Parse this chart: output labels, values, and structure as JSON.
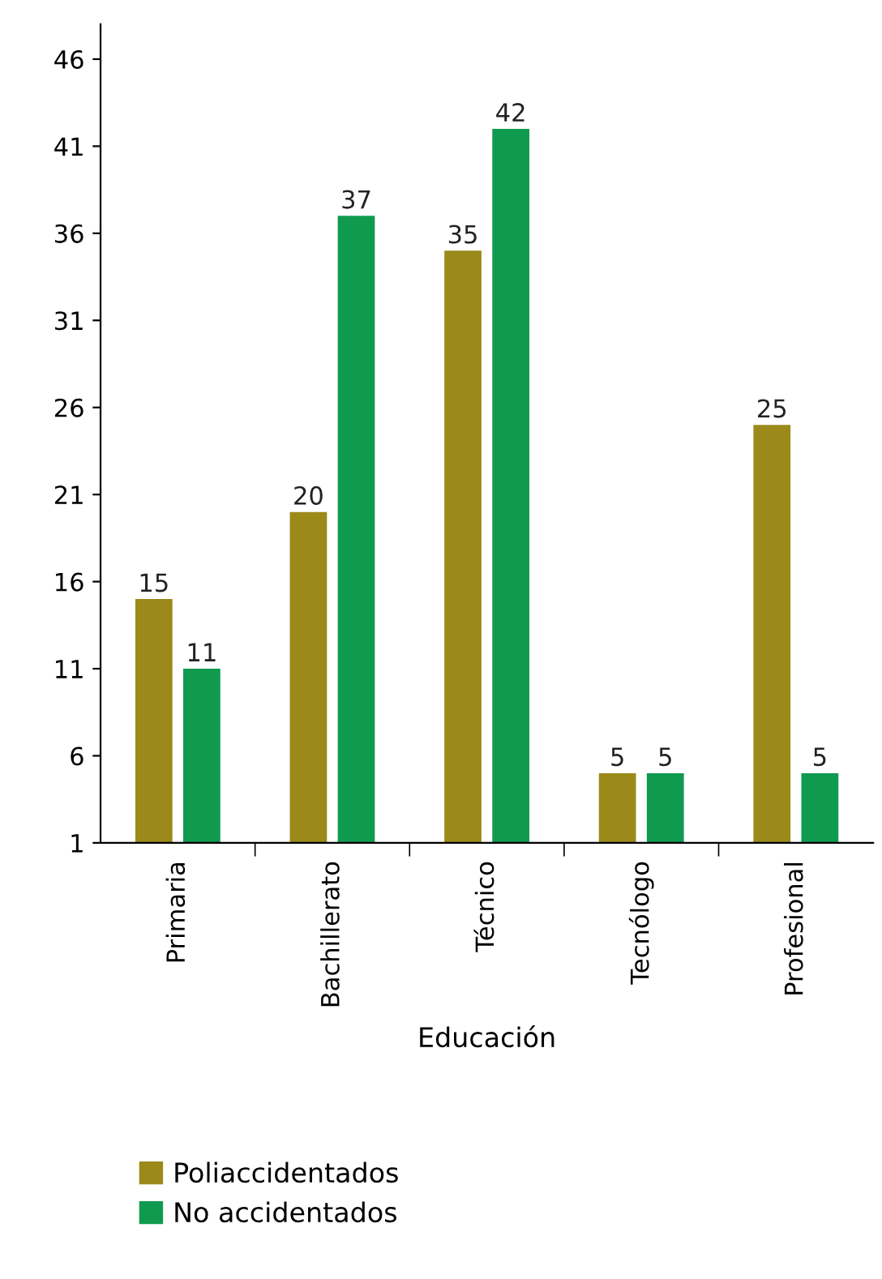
{
  "chart_data": {
    "type": "bar",
    "xlabel": "Educación",
    "categories": [
      "Primaria",
      "Bachillerato",
      "Técnico",
      "Tecnólogo",
      "Profesional"
    ],
    "series": [
      {
        "name": "Poliaccidentados",
        "color": "#9b8a1a",
        "values": [
          15,
          20,
          35,
          5,
          25
        ]
      },
      {
        "name": "No accidentados",
        "color": "#109a50",
        "values": [
          11,
          37,
          42,
          5,
          5
        ]
      }
    ],
    "ylim": [
      1,
      48
    ],
    "yticks": [
      1,
      6,
      11,
      16,
      21,
      26,
      31,
      36,
      41,
      46
    ],
    "data_labels": true,
    "grid": false,
    "legend": "bottom"
  }
}
